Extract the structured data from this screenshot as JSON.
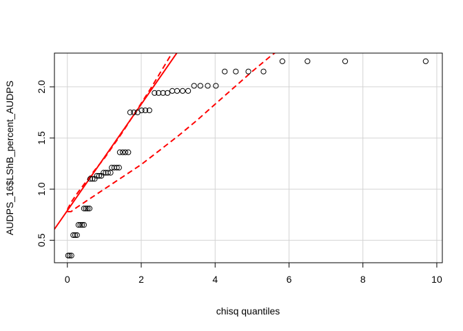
{
  "chart_data": {
    "type": "scatter",
    "title": "",
    "xlabel": "chisq quantiles",
    "ylabel": "AUDPS_16$LShB_percent_AUDPS",
    "xlim": [
      -0.35,
      10.15
    ],
    "ylim": [
      0.28,
      2.33
    ],
    "xticks": [
      0,
      2,
      4,
      6,
      8,
      10
    ],
    "yticks": [
      0.5,
      1.0,
      1.5,
      2.0
    ],
    "xtick_labels": [
      "0",
      "2",
      "4",
      "6",
      "8",
      "10"
    ],
    "ytick_labels": [
      "0.5",
      "1.0",
      "1.5",
      "2.0"
    ],
    "grid": true,
    "colors": {
      "reference": "#ff0000",
      "points": "#000000",
      "grid": "#d3d3d3"
    },
    "points": [
      [
        0.02,
        0.35
      ],
      [
        0.06,
        0.35
      ],
      [
        0.11,
        0.35
      ],
      [
        0.16,
        0.55
      ],
      [
        0.21,
        0.55
      ],
      [
        0.26,
        0.55
      ],
      [
        0.3,
        0.65
      ],
      [
        0.35,
        0.65
      ],
      [
        0.4,
        0.65
      ],
      [
        0.45,
        0.65
      ],
      [
        0.45,
        0.81
      ],
      [
        0.5,
        0.81
      ],
      [
        0.55,
        0.81
      ],
      [
        0.6,
        0.81
      ],
      [
        0.62,
        1.1
      ],
      [
        0.68,
        1.1
      ],
      [
        0.74,
        1.1
      ],
      [
        0.8,
        1.13
      ],
      [
        0.86,
        1.13
      ],
      [
        0.92,
        1.13
      ],
      [
        0.98,
        1.16
      ],
      [
        1.04,
        1.16
      ],
      [
        1.1,
        1.16
      ],
      [
        1.17,
        1.16
      ],
      [
        1.2,
        1.21
      ],
      [
        1.27,
        1.21
      ],
      [
        1.34,
        1.21
      ],
      [
        1.4,
        1.21
      ],
      [
        1.42,
        1.36
      ],
      [
        1.5,
        1.36
      ],
      [
        1.57,
        1.36
      ],
      [
        1.65,
        1.36
      ],
      [
        1.7,
        1.75
      ],
      [
        1.8,
        1.75
      ],
      [
        1.9,
        1.75
      ],
      [
        2.01,
        1.77
      ],
      [
        2.11,
        1.77
      ],
      [
        2.22,
        1.77
      ],
      [
        2.36,
        1.94
      ],
      [
        2.47,
        1.94
      ],
      [
        2.59,
        1.94
      ],
      [
        2.71,
        1.94
      ],
      [
        2.84,
        1.96
      ],
      [
        2.97,
        1.96
      ],
      [
        3.12,
        1.96
      ],
      [
        3.27,
        1.96
      ],
      [
        3.43,
        2.01
      ],
      [
        3.6,
        2.01
      ],
      [
        3.8,
        2.01
      ],
      [
        4.02,
        2.01
      ],
      [
        4.26,
        2.15
      ],
      [
        4.56,
        2.15
      ],
      [
        4.9,
        2.15
      ],
      [
        5.31,
        2.15
      ],
      [
        5.82,
        2.25
      ],
      [
        6.5,
        2.25
      ],
      [
        7.52,
        2.25
      ],
      [
        9.7,
        2.25
      ]
    ],
    "reference_line": {
      "intercept": 0.79,
      "slope": 0.52
    },
    "envelope_upper": [
      [
        0.0,
        0.8
      ],
      [
        0.1,
        0.87
      ],
      [
        0.25,
        0.95
      ],
      [
        0.5,
        1.07
      ],
      [
        0.75,
        1.19
      ],
      [
        1.0,
        1.3
      ],
      [
        1.25,
        1.43
      ],
      [
        1.5,
        1.56
      ],
      [
        1.75,
        1.7
      ],
      [
        2.0,
        1.84
      ],
      [
        2.25,
        1.98
      ],
      [
        2.5,
        2.13
      ],
      [
        2.75,
        2.28
      ],
      [
        2.85,
        2.34
      ]
    ],
    "envelope_lower": [
      [
        0.0,
        0.78
      ],
      [
        0.1,
        0.78
      ],
      [
        0.25,
        0.82
      ],
      [
        0.5,
        0.88
      ],
      [
        1.0,
        1.0
      ],
      [
        1.5,
        1.12
      ],
      [
        2.0,
        1.24
      ],
      [
        2.5,
        1.38
      ],
      [
        3.0,
        1.52
      ],
      [
        3.5,
        1.67
      ],
      [
        4.0,
        1.83
      ],
      [
        4.5,
        1.99
      ],
      [
        5.0,
        2.15
      ],
      [
        5.5,
        2.3
      ],
      [
        5.65,
        2.34
      ]
    ]
  }
}
